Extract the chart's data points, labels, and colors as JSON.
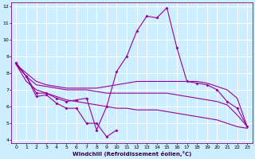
{
  "xlabel": "Windchill (Refroidissement éolien,°C)",
  "bg_color": "#cceeff",
  "line_color": "#990099",
  "grid_color": "#ffffff",
  "xlim": [
    -0.5,
    23.5
  ],
  "ylim": [
    3.8,
    12.2
  ],
  "yticks": [
    4,
    5,
    6,
    7,
    8,
    9,
    10,
    11,
    12
  ],
  "xticks": [
    0,
    1,
    2,
    3,
    4,
    5,
    6,
    7,
    8,
    9,
    10,
    11,
    12,
    13,
    14,
    15,
    16,
    17,
    18,
    19,
    20,
    21,
    22,
    23
  ],
  "s1_x": [
    0,
    1,
    2,
    3,
    4,
    5,
    6,
    7,
    8,
    9,
    10
  ],
  "s1_y": [
    8.6,
    7.8,
    6.6,
    6.7,
    6.2,
    5.9,
    5.9,
    5.0,
    5.0,
    4.2,
    4.6
  ],
  "s2_x": [
    0,
    1,
    2,
    3,
    4,
    5,
    6,
    7,
    8,
    9,
    10,
    11,
    12,
    13,
    14,
    15,
    16,
    17,
    18,
    19,
    20,
    21,
    22,
    23
  ],
  "s2_y": [
    8.6,
    7.8,
    6.8,
    6.8,
    6.5,
    6.3,
    6.4,
    6.5,
    4.6,
    6.0,
    8.1,
    9.0,
    10.5,
    11.4,
    11.3,
    11.9,
    9.5,
    7.5,
    7.4,
    7.3,
    7.0,
    6.3,
    5.9,
    4.8
  ],
  "s3_x": [
    0,
    1,
    2,
    3,
    4,
    5,
    6,
    7,
    8,
    9,
    10,
    11,
    12,
    13,
    14,
    15,
    16,
    17,
    18,
    19,
    20,
    21,
    22,
    23
  ],
  "s3_y": [
    8.5,
    8.0,
    7.5,
    7.3,
    7.2,
    7.1,
    7.1,
    7.1,
    7.1,
    7.2,
    7.3,
    7.4,
    7.5,
    7.5,
    7.5,
    7.5,
    7.5,
    7.5,
    7.5,
    7.4,
    7.2,
    7.0,
    6.5,
    4.8
  ],
  "s4_x": [
    0,
    1,
    2,
    3,
    4,
    5,
    6,
    7,
    8,
    9,
    10,
    11,
    12,
    13,
    14,
    15,
    16,
    17,
    18,
    19,
    20,
    21,
    22,
    23
  ],
  "s4_y": [
    8.5,
    7.8,
    7.3,
    7.2,
    7.1,
    7.0,
    7.0,
    7.0,
    6.9,
    6.8,
    6.8,
    6.8,
    6.8,
    6.8,
    6.8,
    6.8,
    6.7,
    6.6,
    6.5,
    6.4,
    6.3,
    6.1,
    5.5,
    4.8
  ],
  "s5_x": [
    0,
    1,
    2,
    3,
    4,
    5,
    6,
    7,
    8,
    9,
    10,
    11,
    12,
    13,
    14,
    15,
    16,
    17,
    18,
    19,
    20,
    21,
    22,
    23
  ],
  "s5_y": [
    8.5,
    7.5,
    7.0,
    6.8,
    6.6,
    6.4,
    6.3,
    6.2,
    6.1,
    6.0,
    5.9,
    5.9,
    5.8,
    5.8,
    5.8,
    5.7,
    5.6,
    5.5,
    5.4,
    5.3,
    5.2,
    5.0,
    4.8,
    4.7
  ]
}
